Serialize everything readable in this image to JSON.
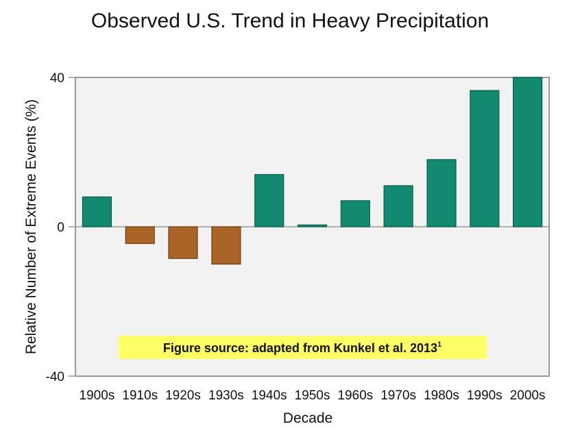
{
  "chart_data": {
    "type": "bar",
    "title": "Observed U.S. Trend in Heavy Precipitation",
    "xlabel": "Decade",
    "ylabel": "Relative Number of Extreme Events (%)",
    "ylim": [
      -40,
      40
    ],
    "yticks": [
      "40",
      "0",
      "-40"
    ],
    "categories": [
      "1900s",
      "1910s",
      "1920s",
      "1930s",
      "1940s",
      "1950s",
      "1960s",
      "1970s",
      "1980s",
      "1990s",
      "2000s"
    ],
    "values": [
      8,
      -4.5,
      -8.5,
      -10,
      14,
      0.5,
      7,
      11,
      18,
      36.5,
      40
    ],
    "colors": {
      "positive": "#128a70",
      "negative": "#aa6428",
      "plot_background": "#f2f2f2",
      "annotation_background": "#ffff66"
    },
    "annotation": {
      "text": "Figure source: adapted from Kunkel et al. 2013",
      "superscript": "1"
    }
  }
}
